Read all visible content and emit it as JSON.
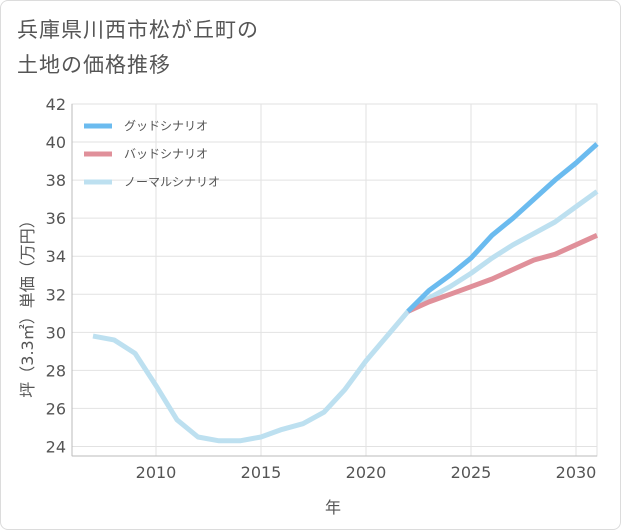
{
  "title_lines": [
    "兵庫県川西市松が丘町の",
    "土地の価格推移"
  ],
  "chart_data": {
    "type": "line",
    "xlabel": "年",
    "ylabel": "坪（3.3㎡）単価（万円）",
    "xlim": [
      2006,
      2031
    ],
    "ylim": [
      23.5,
      42
    ],
    "xticks": [
      2010,
      2015,
      2020,
      2025,
      2030
    ],
    "yticks": [
      24,
      26,
      28,
      30,
      32,
      34,
      36,
      38,
      40,
      42
    ],
    "grid": true,
    "legend_position": "top-left",
    "series": [
      {
        "name": "グッドシナリオ",
        "color": "#6bbbef",
        "x": [
          2022,
          2023,
          2024,
          2025,
          2026,
          2027,
          2028,
          2029,
          2030,
          2031
        ],
        "y": [
          31.1,
          32.2,
          33.0,
          33.9,
          35.1,
          36.0,
          37.0,
          38.0,
          38.9,
          39.9
        ]
      },
      {
        "name": "バッドシナリオ",
        "color": "#e0909a",
        "x": [
          2022,
          2023,
          2024,
          2025,
          2026,
          2027,
          2028,
          2029,
          2030,
          2031
        ],
        "y": [
          31.1,
          31.6,
          32.0,
          32.4,
          32.8,
          33.3,
          33.8,
          34.1,
          34.6,
          35.1
        ]
      },
      {
        "name": "ノーマルシナリオ",
        "color": "#bde0f0",
        "x": [
          2007,
          2008,
          2009,
          2010,
          2011,
          2012,
          2013,
          2014,
          2015,
          2016,
          2017,
          2018,
          2019,
          2020,
          2021,
          2022,
          2023,
          2024,
          2025,
          2026,
          2027,
          2028,
          2029,
          2030,
          2031
        ],
        "y": [
          29.8,
          29.6,
          28.9,
          27.2,
          25.4,
          24.5,
          24.3,
          24.3,
          24.5,
          24.9,
          25.2,
          25.8,
          27.0,
          28.5,
          29.8,
          31.1,
          31.8,
          32.4,
          33.1,
          33.9,
          34.6,
          35.2,
          35.8,
          36.6,
          37.4
        ]
      }
    ]
  }
}
